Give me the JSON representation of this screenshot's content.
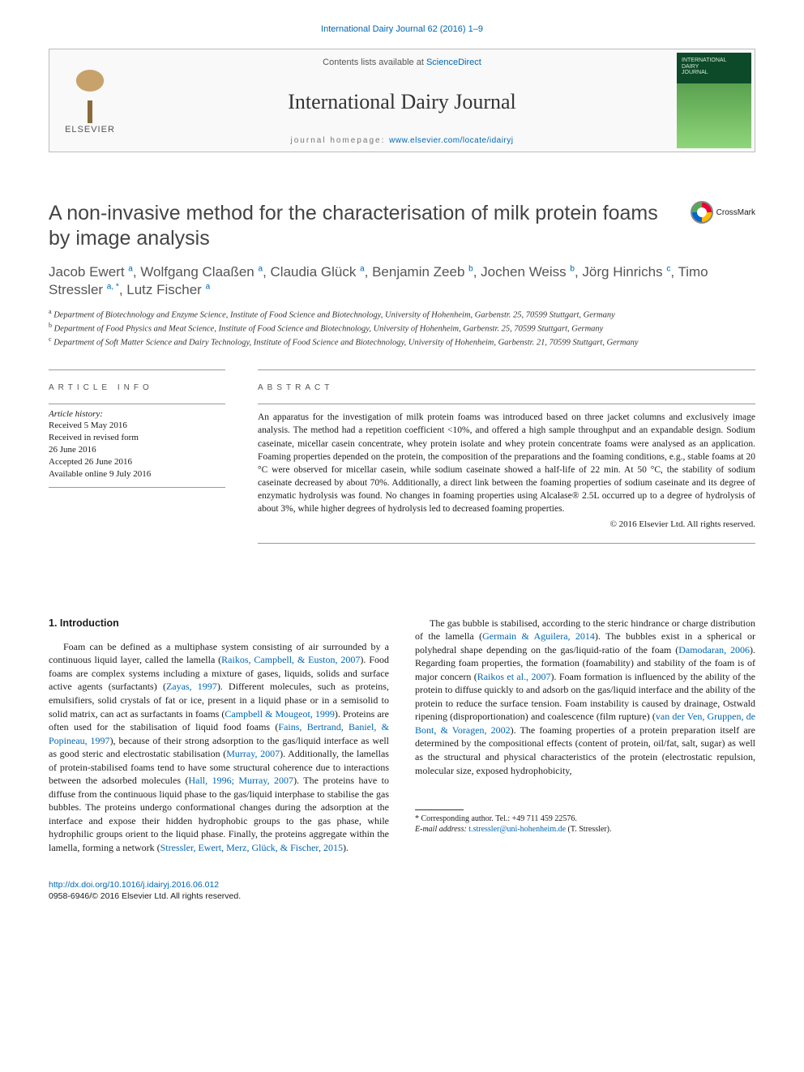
{
  "running_head": "International Dairy Journal 62 (2016) 1–9",
  "masthead": {
    "contents_prefix": "Contents lists available at ",
    "contents_link": "ScienceDirect",
    "journal_title": "International Dairy Journal",
    "homepage_prefix": "journal homepage: ",
    "homepage_url": "www.elsevier.com/locate/idairyj",
    "publisher": "ELSEVIER",
    "cover_lines": "INTERNATIONAL\nDAIRY\nJOURNAL"
  },
  "crossmark_label": "CrossMark",
  "title": "A non-invasive method for the characterisation of milk protein foams by image analysis",
  "authors_html": "Jacob Ewert <sup>a</sup>, Wolfgang Claaßen <sup>a</sup>, Claudia Glück <sup>a</sup>, Benjamin Zeeb <sup>b</sup>, Jochen Weiss <sup>b</sup>, Jörg Hinrichs <sup>c</sup>, Timo Stressler <sup>a, *</sup>, Lutz Fischer <sup>a</sup>",
  "affiliations": [
    {
      "key": "a",
      "text": "Department of Biotechnology and Enzyme Science, Institute of Food Science and Biotechnology, University of Hohenheim, Garbenstr. 25, 70599 Stuttgart, Germany"
    },
    {
      "key": "b",
      "text": "Department of Food Physics and Meat Science, Institute of Food Science and Biotechnology, University of Hohenheim, Garbenstr. 25, 70599 Stuttgart, Germany"
    },
    {
      "key": "c",
      "text": "Department of Soft Matter Science and Dairy Technology, Institute of Food Science and Biotechnology, University of Hohenheim, Garbenstr. 21, 70599 Stuttgart, Germany"
    }
  ],
  "info_head": "ARTICLE INFO",
  "abs_head": "ABSTRACT",
  "history_label": "Article history:",
  "history": [
    "Received 5 May 2016",
    "Received in revised form",
    "26 June 2016",
    "Accepted 26 June 2016",
    "Available online 9 July 2016"
  ],
  "abstract": "An apparatus for the investigation of milk protein foams was introduced based on three jacket columns and exclusively image analysis. The method had a repetition coefficient <10%, and offered a high sample throughput and an expandable design. Sodium caseinate, micellar casein concentrate, whey protein isolate and whey protein concentrate foams were analysed as an application. Foaming properties depended on the protein, the composition of the preparations and the foaming conditions, e.g., stable foams at 20 °C were observed for micellar casein, while sodium caseinate showed a half-life of 22 min. At 50 °C, the stability of sodium caseinate decreased by about 70%. Additionally, a direct link between the foaming properties of sodium caseinate and its degree of enzymatic hydrolysis was found. No changes in foaming properties using Alcalase® 2.5L occurred up to a degree of hydrolysis of about 3%, while higher degrees of hydrolysis led to decreased foaming properties.",
  "abs_copyright": "© 2016 Elsevier Ltd. All rights reserved.",
  "section1_head": "1.  Introduction",
  "para1_parts": {
    "t1": "Foam can be defined as a multiphase system consisting of air surrounded by a continuous liquid layer, called the lamella (",
    "r1": "Raikos, Campbell, & Euston, 2007",
    "t2": "). Food foams are complex systems including a mixture of gases, liquids, solids and surface active agents (surfactants) (",
    "r2": "Zayas, 1997",
    "t3": "). Different molecules, such as proteins, emulsifiers, solid crystals of fat or ice, present in a liquid phase or in a semisolid to solid matrix, can act as surfactants in foams (",
    "r3": "Campbell & Mougeot, 1999",
    "t4": "). Proteins are often used for the stabilisation of liquid food foams (",
    "r4": "Fains, Bertrand, Baniel, & Popineau, 1997",
    "t5": "), because of their strong adsorption to the gas/liquid interface as well as good steric and electrostatic stabilisation (",
    "r5": "Murray, 2007",
    "t6": "). Additionally, the lamellas of protein-stabilised foams tend to have some structural coherence due to interactions between the adsorbed molecules (",
    "r6": "Hall, 1996; Murray, 2007",
    "t7": "). The proteins have to diffuse from the continuous liquid phase to the "
  },
  "para1b_parts": {
    "t1": "gas/liquid interphase to stabilise the gas bubbles. The proteins undergo conformational changes during the adsorption at the interface and expose their hidden hydrophobic groups to the gas phase, while hydrophilic groups orient to the liquid phase. Finally, the proteins aggregate within the lamella, forming a network (",
    "r1": "Stressler, Ewert, Merz, Glück, & Fischer, 2015",
    "t2": ")."
  },
  "para2_parts": {
    "t1": "The gas bubble is stabilised, according to the steric hindrance or charge distribution of the lamella (",
    "r1": "Germain & Aguilera, 2014",
    "t2": "). The bubbles exist in a spherical or polyhedral shape depending on the gas/liquid-ratio of the foam (",
    "r2": "Damodaran, 2006",
    "t3": "). Regarding foam properties, the formation (foamability) and stability of the foam is of major concern (",
    "r3": "Raikos et al., 2007",
    "t4": "). Foam formation is influenced by the ability of the protein to diffuse quickly to and adsorb on the gas/liquid interface and the ability of the protein to reduce the surface tension. Foam instability is caused by drainage, Ostwald ripening (disproportionation) and coalescence (film rupture) (",
    "r4": "van der Ven, Gruppen, de Bont, & Voragen, 2002",
    "t5": "). The foaming properties of a protein preparation itself are determined by the compositional effects (content of protein, oil/fat, salt, sugar) as well as the structural and physical characteristics of the protein (electrostatic repulsion, molecular size, exposed hydrophobicity,"
  },
  "footnote": {
    "corr": "* Corresponding author. Tel.: +49 711 459 22576.",
    "email_label": "E-mail address: ",
    "email": "t.stressler@uni-hohenheim.de",
    "email_tail": " (T. Stressler)."
  },
  "bottom": {
    "doi": "http://dx.doi.org/10.1016/j.idairyj.2016.06.012",
    "issn_line": "0958-6946/© 2016 Elsevier Ltd. All rights reserved."
  }
}
